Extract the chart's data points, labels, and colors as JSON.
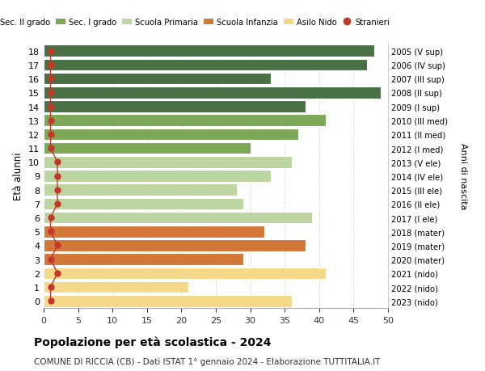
{
  "ages": [
    18,
    17,
    16,
    15,
    14,
    13,
    12,
    11,
    10,
    9,
    8,
    7,
    6,
    5,
    4,
    3,
    2,
    1,
    0
  ],
  "right_labels": [
    "2005 (V sup)",
    "2006 (IV sup)",
    "2007 (III sup)",
    "2008 (II sup)",
    "2009 (I sup)",
    "2010 (III med)",
    "2011 (II med)",
    "2012 (I med)",
    "2013 (V ele)",
    "2014 (IV ele)",
    "2015 (III ele)",
    "2016 (II ele)",
    "2017 (I ele)",
    "2018 (mater)",
    "2019 (mater)",
    "2020 (mater)",
    "2021 (nido)",
    "2022 (nido)",
    "2023 (nido)"
  ],
  "bar_values": [
    48,
    47,
    33,
    49,
    38,
    41,
    37,
    30,
    36,
    33,
    28,
    29,
    39,
    32,
    38,
    29,
    41,
    21,
    36
  ],
  "stranieri_values": [
    1,
    1,
    1,
    1,
    1,
    1,
    1,
    1,
    2,
    2,
    2,
    2,
    1,
    1,
    2,
    1,
    2,
    1,
    1
  ],
  "bar_colors": [
    "#4a7045",
    "#4a7045",
    "#4a7045",
    "#4a7045",
    "#4a7045",
    "#7da857",
    "#7da857",
    "#7da857",
    "#bdd5a0",
    "#bdd5a0",
    "#bdd5a0",
    "#bdd5a0",
    "#bdd5a0",
    "#d4783a",
    "#d4783a",
    "#d4783a",
    "#f5d98b",
    "#f5d98b",
    "#f5d98b"
  ],
  "legend_labels": [
    "Sec. II grado",
    "Sec. I grado",
    "Scuola Primaria",
    "Scuola Infanzia",
    "Asilo Nido",
    "Stranieri"
  ],
  "legend_colors": [
    "#4a7045",
    "#7da857",
    "#bdd5a0",
    "#d4783a",
    "#f5d98b",
    "#c0392b"
  ],
  "stranieri_color": "#c0392b",
  "ylabel": "Età alunni",
  "right_ylabel": "Anni di nascita",
  "title": "Popolazione per età scolastica - 2024",
  "subtitle": "COMUNE DI RICCIA (CB) - Dati ISTAT 1° gennaio 2024 - Elaborazione TUTTITALIA.IT",
  "xlim": [
    0,
    50
  ],
  "xticks": [
    0,
    5,
    10,
    15,
    20,
    25,
    30,
    35,
    40,
    45,
    50
  ],
  "grid_color": "#e0e0e0",
  "bar_edge_color": "white"
}
